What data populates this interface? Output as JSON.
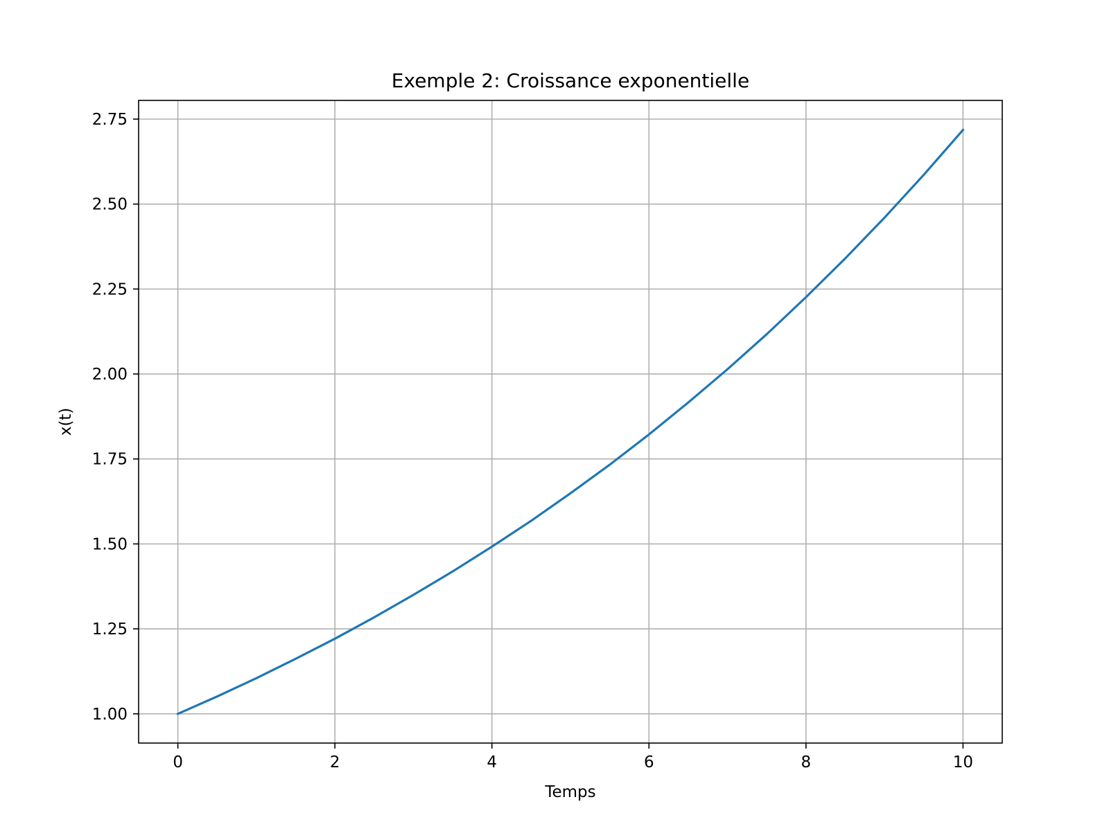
{
  "chart_data": {
    "type": "line",
    "title": "Exemple 2: Croissance exponentielle",
    "xlabel": "Temps",
    "ylabel": "x(t)",
    "xlim": [
      -0.5,
      10.5
    ],
    "ylim": [
      0.914,
      2.805
    ],
    "xticks": [
      0,
      2,
      4,
      6,
      8,
      10
    ],
    "xtick_labels": [
      "0",
      "2",
      "4",
      "6",
      "8",
      "10"
    ],
    "yticks": [
      1.0,
      1.25,
      1.5,
      1.75,
      2.0,
      2.25,
      2.5,
      2.75
    ],
    "ytick_labels": [
      "1.00",
      "1.25",
      "1.50",
      "1.75",
      "2.00",
      "2.25",
      "2.50",
      "2.75"
    ],
    "grid": true,
    "series": [
      {
        "color": "#1f77b4",
        "x": [
          0,
          0.5,
          1,
          1.5,
          2,
          2.5,
          3,
          3.5,
          4,
          4.5,
          5,
          5.5,
          6,
          6.5,
          7,
          7.5,
          8,
          8.5,
          9,
          9.5,
          10
        ],
        "y": [
          1.0,
          1.051,
          1.105,
          1.162,
          1.221,
          1.284,
          1.35,
          1.419,
          1.492,
          1.568,
          1.649,
          1.733,
          1.822,
          1.916,
          2.014,
          2.117,
          2.226,
          2.34,
          2.46,
          2.586,
          2.718
        ]
      }
    ]
  }
}
